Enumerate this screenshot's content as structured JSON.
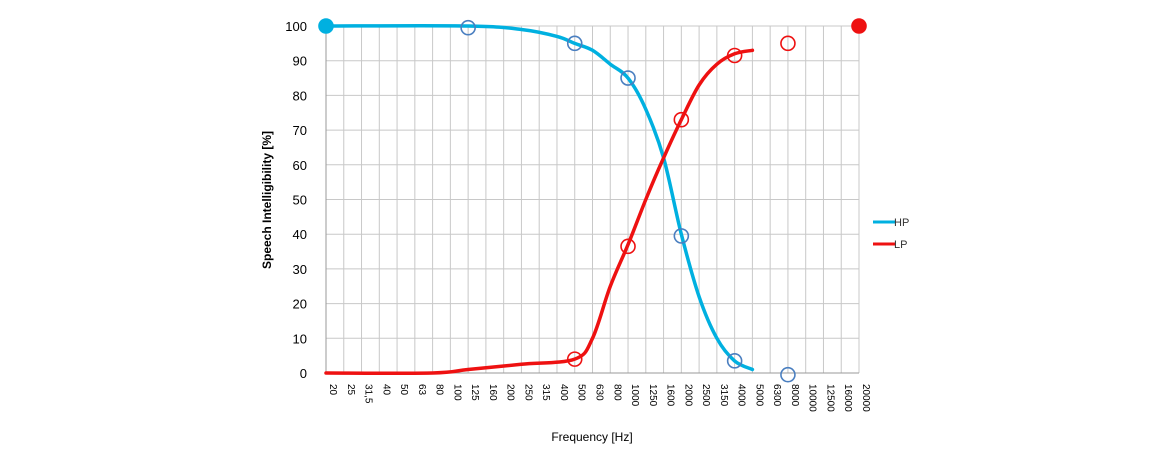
{
  "chart_data": {
    "type": "line",
    "title": "",
    "xlabel": "Frequency [Hz]",
    "ylabel": "Speech Intelligibility [%]",
    "ylim": [
      0,
      100
    ],
    "y_ticks": [
      "0",
      "10",
      "20",
      "30",
      "40",
      "50",
      "60",
      "70",
      "80",
      "90",
      "100"
    ],
    "categories": [
      "20",
      "25",
      "31,5",
      "40",
      "50",
      "63",
      "80",
      "100",
      "125",
      "160",
      "200",
      "250",
      "315",
      "400",
      "500",
      "630",
      "800",
      "1000",
      "1250",
      "1600",
      "2000",
      "2500",
      "3150",
      "4000",
      "5000",
      "6300",
      "8000",
      "10000",
      "12500",
      "16000",
      "20000"
    ],
    "grid": true,
    "legend_position": "right",
    "colors": {
      "HP": "#00b0e0",
      "LP": "#ee1111",
      "HP_marker": "#4a7fc0",
      "LP_marker": "#ee1111"
    },
    "series": [
      {
        "name": "HP",
        "color": "#00b0e0",
        "curve": [
          {
            "x": "20",
            "y": 100
          },
          {
            "x": "125",
            "y": 100
          },
          {
            "x": "250",
            "y": 99
          },
          {
            "x": "400",
            "y": 97
          },
          {
            "x": "500",
            "y": 95
          },
          {
            "x": "630",
            "y": 93
          },
          {
            "x": "800",
            "y": 89
          },
          {
            "x": "1000",
            "y": 85
          },
          {
            "x": "1250",
            "y": 76
          },
          {
            "x": "1600",
            "y": 62
          },
          {
            "x": "2000",
            "y": 40
          },
          {
            "x": "2500",
            "y": 22
          },
          {
            "x": "3150",
            "y": 10
          },
          {
            "x": "4000",
            "y": 3.5
          },
          {
            "x": "5000",
            "y": 1
          }
        ],
        "markers": [
          {
            "x": "20",
            "y": 100,
            "filled": true
          },
          {
            "x": "125",
            "y": 99.5,
            "filled": false
          },
          {
            "x": "500",
            "y": 95,
            "filled": false
          },
          {
            "x": "1000",
            "y": 85,
            "filled": false
          },
          {
            "x": "2000",
            "y": 39.5,
            "filled": false
          },
          {
            "x": "4000",
            "y": 3.5,
            "filled": false
          },
          {
            "x": "8000",
            "y": -0.5,
            "filled": false
          }
        ]
      },
      {
        "name": "LP",
        "color": "#ee1111",
        "curve": [
          {
            "x": "20",
            "y": 0
          },
          {
            "x": "80",
            "y": 0
          },
          {
            "x": "125",
            "y": 1
          },
          {
            "x": "250",
            "y": 2.5
          },
          {
            "x": "500",
            "y": 4
          },
          {
            "x": "630",
            "y": 10
          },
          {
            "x": "800",
            "y": 25
          },
          {
            "x": "1000",
            "y": 37
          },
          {
            "x": "1250",
            "y": 50
          },
          {
            "x": "1600",
            "y": 62
          },
          {
            "x": "2000",
            "y": 73
          },
          {
            "x": "2500",
            "y": 83
          },
          {
            "x": "3150",
            "y": 89
          },
          {
            "x": "4000",
            "y": 92
          },
          {
            "x": "5000",
            "y": 93
          }
        ],
        "markers": [
          {
            "x": "500",
            "y": 4,
            "filled": false
          },
          {
            "x": "1000",
            "y": 36.5,
            "filled": false
          },
          {
            "x": "2000",
            "y": 73,
            "filled": false
          },
          {
            "x": "4000",
            "y": 91.5,
            "filled": false
          },
          {
            "x": "8000",
            "y": 95,
            "filled": false
          },
          {
            "x": "20000",
            "y": 100,
            "filled": true
          }
        ]
      }
    ]
  }
}
